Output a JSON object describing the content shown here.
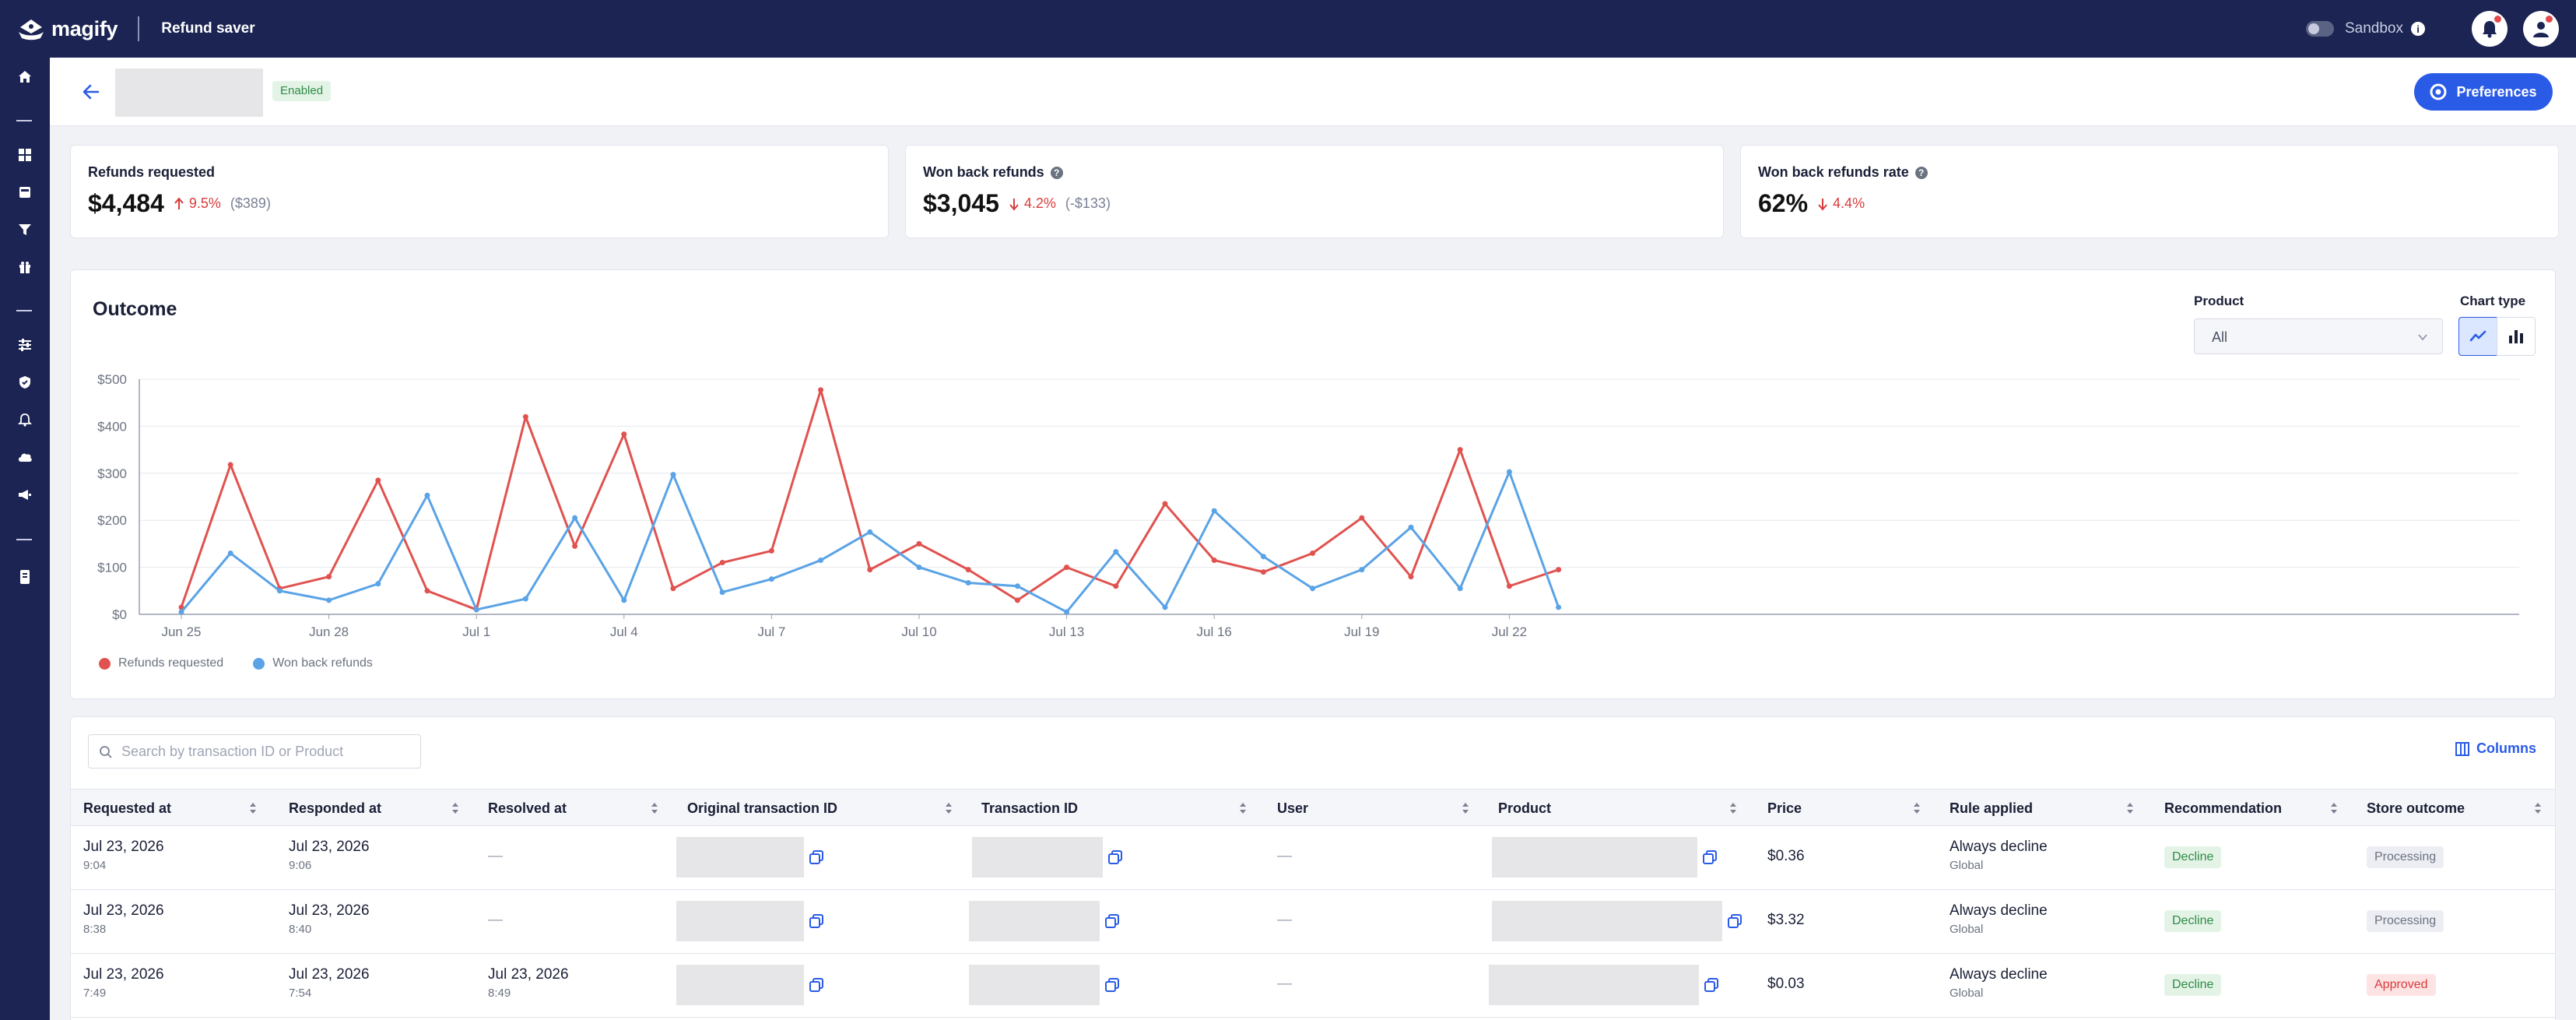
{
  "app": {
    "brand": "magify",
    "title": "Refund saver"
  },
  "topbar": {
    "sandbox_label": "Sandbox"
  },
  "header": {
    "status": "Enabled",
    "preferences_label": "Preferences"
  },
  "kpis": [
    {
      "label": "Refunds requested",
      "value": "$4,484",
      "delta": "9.5%",
      "direction": "up",
      "abs": "($389)",
      "has_info": false
    },
    {
      "label": "Won back refunds",
      "value": "$3,045",
      "delta": "4.2%",
      "direction": "down",
      "abs": "(-$133)",
      "has_info": true
    },
    {
      "label": "Won back refunds rate",
      "value": "62%",
      "delta": "4.4%",
      "direction": "down",
      "abs": "",
      "has_info": true
    }
  ],
  "chart": {
    "title": "Outcome",
    "product_label": "Product",
    "product_value": "All",
    "chart_type_label": "Chart type"
  },
  "chart_data": {
    "type": "line",
    "title": "Outcome",
    "xlabel": "",
    "ylabel": "",
    "ylim": [
      0,
      500
    ],
    "yticks": [
      "$0",
      "$100",
      "$200",
      "$300",
      "$400",
      "$500"
    ],
    "x_tick_labels": [
      "Jun 25",
      "Jun 28",
      "Jul 1",
      "Jul 4",
      "Jul 7",
      "Jul 10",
      "Jul 13",
      "Jul 16",
      "Jul 19",
      "Jul 22"
    ],
    "x": [
      "Jun 25",
      "Jun 26",
      "Jun 27",
      "Jun 28",
      "Jun 29",
      "Jun 30",
      "Jul 1",
      "Jul 2",
      "Jul 3",
      "Jul 4",
      "Jul 5",
      "Jul 6",
      "Jul 7",
      "Jul 8",
      "Jul 9",
      "Jul 10",
      "Jul 11",
      "Jul 12",
      "Jul 13",
      "Jul 14",
      "Jul 15",
      "Jul 16",
      "Jul 17",
      "Jul 18",
      "Jul 19",
      "Jul 20",
      "Jul 21",
      "Jul 22",
      "Jul 23"
    ],
    "series": [
      {
        "name": "Refunds requested",
        "color": "#e0524f",
        "values": [
          15,
          318,
          55,
          80,
          285,
          50,
          10,
          420,
          145,
          383,
          55,
          110,
          135,
          477,
          95,
          150,
          95,
          30,
          100,
          60,
          235,
          115,
          90,
          130,
          205,
          80,
          350,
          60,
          95
        ]
      },
      {
        "name": "Won back refunds",
        "color": "#5aa3e6",
        "values": [
          5,
          130,
          50,
          30,
          65,
          253,
          10,
          33,
          205,
          30,
          297,
          47,
          75,
          115,
          175,
          100,
          67,
          60,
          5,
          133,
          15,
          220,
          123,
          55,
          95,
          185,
          55,
          303,
          15
        ]
      }
    ],
    "legend": "bottom-left",
    "grid": true
  },
  "table": {
    "search_placeholder": "Search by transaction ID or Product",
    "columns_label": "Columns",
    "headers": [
      "Requested at",
      "Responded at",
      "Resolved at",
      "Original transaction ID",
      "Transaction ID",
      "User",
      "Product",
      "Price",
      "Rule applied",
      "Recommendation",
      "Store outcome"
    ],
    "rows": [
      {
        "requested": "Jul 23, 2026",
        "requested_time": "9:04",
        "responded": "Jul 23, 2026",
        "responded_time": "9:06",
        "resolved": "—",
        "resolved_time": "",
        "user": "—",
        "price": "$0.36",
        "rule": "Always decline",
        "rule_scope": "Global",
        "recommendation": "Decline",
        "outcome": "Processing",
        "outcome_style": "gray"
      },
      {
        "requested": "Jul 23, 2026",
        "requested_time": "8:38",
        "responded": "Jul 23, 2026",
        "responded_time": "8:40",
        "resolved": "—",
        "resolved_time": "",
        "user": "—",
        "price": "$3.32",
        "rule": "Always decline",
        "rule_scope": "Global",
        "recommendation": "Decline",
        "outcome": "Processing",
        "outcome_style": "gray"
      },
      {
        "requested": "Jul 23, 2026",
        "requested_time": "7:49",
        "responded": "Jul 23, 2026",
        "responded_time": "7:54",
        "resolved": "Jul 23, 2026",
        "resolved_time": "8:49",
        "user": "—",
        "price": "$0.03",
        "rule": "Always decline",
        "rule_scope": "Global",
        "recommendation": "Decline",
        "outcome": "Approved",
        "outcome_style": "red"
      }
    ]
  },
  "colors": {
    "nav": "#1b2452",
    "accent": "#2a5be6",
    "refunds": "#e0524f",
    "won_back": "#5aa3e6"
  },
  "icons": {
    "sidebar": [
      "home-icon",
      "dashboard-icon",
      "inbox-icon",
      "filter-icon",
      "gift-icon",
      "sliders-icon",
      "shield-icon",
      "bell-icon",
      "cloud-icon",
      "megaphone-icon",
      "book-icon"
    ],
    "topbar": [
      "info-icon",
      "notification-bell-icon",
      "user-avatar-icon"
    ]
  }
}
